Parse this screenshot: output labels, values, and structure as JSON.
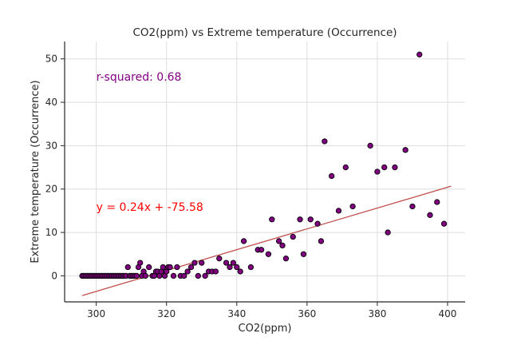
{
  "chart_data": {
    "type": "scatter",
    "title": "CO2(ppm) vs Extreme temperature (Occurrence)",
    "xlabel": "CO2(ppm)",
    "ylabel": "Extreme temperature (Occurrence)",
    "xlim": [
      291,
      405
    ],
    "ylim": [
      -6,
      54
    ],
    "xticks": [
      300,
      320,
      340,
      360,
      380,
      400
    ],
    "yticks": [
      0,
      10,
      20,
      30,
      40,
      50
    ],
    "grid": true,
    "legend": "none",
    "marker_color": "#800080",
    "marker_edge": "#000000",
    "line_color": "#c0504d",
    "regression": {
      "slope": 0.24,
      "intercept": -75.58,
      "x_range": [
        296,
        401
      ]
    },
    "annotations": [
      {
        "text": "r-squared: 0.68",
        "x": 300,
        "y": 45,
        "color": "#800080"
      },
      {
        "text": "y = 0.24x + -75.58",
        "x": 300,
        "y": 15,
        "color": "#ff0000"
      }
    ],
    "points": [
      [
        296,
        0
      ],
      [
        296.5,
        0
      ],
      [
        297,
        0
      ],
      [
        297.5,
        0
      ],
      [
        298,
        0
      ],
      [
        298.5,
        0
      ],
      [
        299,
        0
      ],
      [
        299.5,
        0
      ],
      [
        300,
        0
      ],
      [
        300.5,
        0
      ],
      [
        301,
        0
      ],
      [
        301.5,
        0
      ],
      [
        302,
        0
      ],
      [
        302.5,
        0
      ],
      [
        303,
        0
      ],
      [
        303.5,
        0
      ],
      [
        304,
        0
      ],
      [
        304.5,
        0
      ],
      [
        305,
        0
      ],
      [
        305.5,
        0
      ],
      [
        306,
        0
      ],
      [
        306.5,
        0
      ],
      [
        307,
        0
      ],
      [
        307.5,
        0
      ],
      [
        308,
        0
      ],
      [
        308.5,
        0
      ],
      [
        309,
        2
      ],
      [
        309.5,
        0
      ],
      [
        310,
        0
      ],
      [
        310.5,
        0
      ],
      [
        311,
        0
      ],
      [
        311.5,
        0
      ],
      [
        312,
        2
      ],
      [
        312.5,
        3
      ],
      [
        313,
        0
      ],
      [
        313.5,
        1
      ],
      [
        314,
        0
      ],
      [
        315,
        2
      ],
      [
        316,
        0
      ],
      [
        316.5,
        0
      ],
      [
        317,
        1
      ],
      [
        317.5,
        1
      ],
      [
        318,
        0
      ],
      [
        318.5,
        1
      ],
      [
        319,
        2
      ],
      [
        319.5,
        0
      ],
      [
        320,
        1
      ],
      [
        320.5,
        2
      ],
      [
        321,
        2
      ],
      [
        322,
        0
      ],
      [
        323,
        2
      ],
      [
        324,
        0
      ],
      [
        325,
        0
      ],
      [
        326,
        1
      ],
      [
        327,
        2
      ],
      [
        328,
        3
      ],
      [
        329,
        0
      ],
      [
        330,
        3
      ],
      [
        331,
        0
      ],
      [
        332,
        1
      ],
      [
        333,
        1
      ],
      [
        334,
        1
      ],
      [
        335,
        4
      ],
      [
        337,
        3
      ],
      [
        338,
        2
      ],
      [
        339,
        3
      ],
      [
        340,
        2
      ],
      [
        341,
        1
      ],
      [
        342,
        8
      ],
      [
        344,
        2
      ],
      [
        346,
        6
      ],
      [
        347,
        6
      ],
      [
        349,
        5
      ],
      [
        350,
        13
      ],
      [
        352,
        8
      ],
      [
        353,
        7
      ],
      [
        354,
        4
      ],
      [
        356,
        9
      ],
      [
        358,
        13
      ],
      [
        359,
        5
      ],
      [
        361,
        13
      ],
      [
        363,
        12
      ],
      [
        364,
        8
      ],
      [
        365,
        31
      ],
      [
        367,
        23
      ],
      [
        369,
        15
      ],
      [
        371,
        25
      ],
      [
        373,
        16
      ],
      [
        378,
        30
      ],
      [
        380,
        24
      ],
      [
        382,
        25
      ],
      [
        383,
        10
      ],
      [
        385,
        25
      ],
      [
        388,
        29
      ],
      [
        390,
        16
      ],
      [
        392,
        51
      ],
      [
        395,
        14
      ],
      [
        397,
        17
      ],
      [
        399,
        12
      ]
    ]
  }
}
